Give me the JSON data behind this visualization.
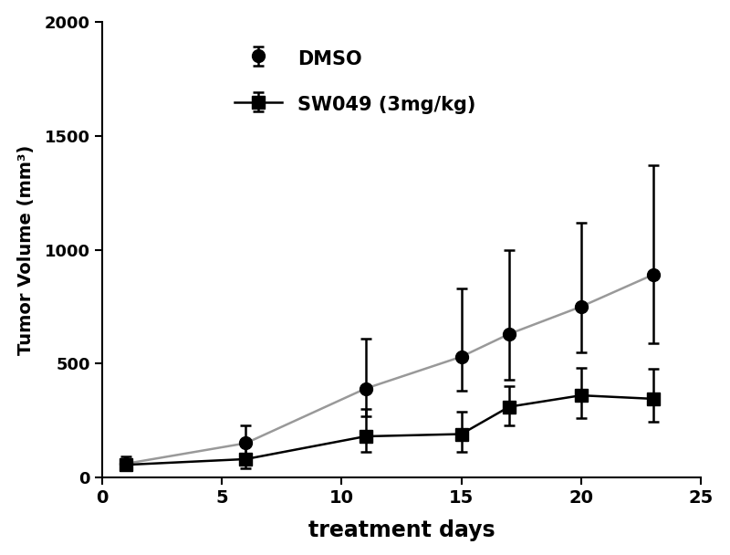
{
  "dmso_x": [
    1,
    6,
    11,
    15,
    17,
    20,
    23
  ],
  "dmso_y": [
    60,
    150,
    390,
    530,
    630,
    750,
    890
  ],
  "dmso_yerr_low": [
    30,
    60,
    120,
    150,
    200,
    200,
    300
  ],
  "dmso_yerr_high": [
    30,
    80,
    220,
    300,
    370,
    370,
    480
  ],
  "sw049_x": [
    1,
    6,
    11,
    15,
    17,
    20,
    23
  ],
  "sw049_y": [
    55,
    80,
    180,
    190,
    310,
    360,
    345
  ],
  "sw049_yerr_low": [
    25,
    40,
    70,
    80,
    80,
    100,
    100
  ],
  "sw049_yerr_high": [
    25,
    60,
    120,
    100,
    90,
    120,
    130
  ],
  "xlabel": "treatment days",
  "ylabel": "Tumor Volume (mm³)",
  "xlim": [
    0,
    25
  ],
  "ylim": [
    0,
    2000
  ],
  "xticks": [
    0,
    5,
    10,
    15,
    20,
    25
  ],
  "yticks": [
    0,
    500,
    1000,
    1500,
    2000
  ],
  "legend_dmso": "DMSO",
  "legend_sw049": "SW049 (3mg/kg)",
  "dmso_line_color": "#999999",
  "sw049_line_color": "#000000",
  "bg_color": "#ffffff",
  "marker_size": 10,
  "line_width": 1.8,
  "cap_size": 4
}
